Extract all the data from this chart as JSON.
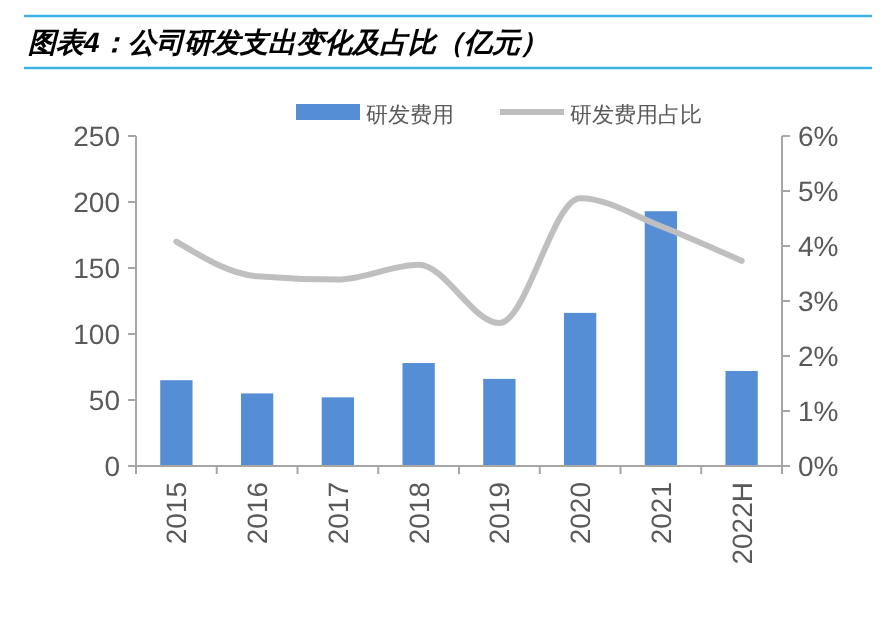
{
  "chart_data": {
    "type": "bar",
    "title": "图表4：公司研发支出变化及占比（亿元）",
    "categories": [
      "2015",
      "2016",
      "2017",
      "2018",
      "2019",
      "2020",
      "2021",
      "2022H"
    ],
    "series": [
      {
        "name": "研发费用",
        "color": "#558ed5",
        "values": [
          65,
          55,
          52,
          78,
          66,
          116,
          193,
          72
        ]
      },
      {
        "name": "研发费用占比",
        "type": "line",
        "axis": "y2",
        "color": "#bfbfbf",
        "values": [
          4.08,
          3.45,
          3.39,
          3.66,
          2.6,
          4.87,
          4.36,
          3.73
        ]
      }
    ],
    "ylim": [
      0,
      250
    ],
    "yticks": [
      0,
      50,
      100,
      150,
      200,
      250
    ],
    "y2lim": [
      0,
      6
    ],
    "y2ticks": [
      {
        "value": 0,
        "label": "0%"
      },
      {
        "value": 1,
        "label": "1%"
      },
      {
        "value": 2,
        "label": "2%"
      },
      {
        "value": 3,
        "label": "3%"
      },
      {
        "value": 4,
        "label": "4%"
      },
      {
        "value": 5,
        "label": "5%"
      },
      {
        "value": 6,
        "label": "6%"
      }
    ],
    "legend": "top",
    "grid": false,
    "marker": "none"
  }
}
